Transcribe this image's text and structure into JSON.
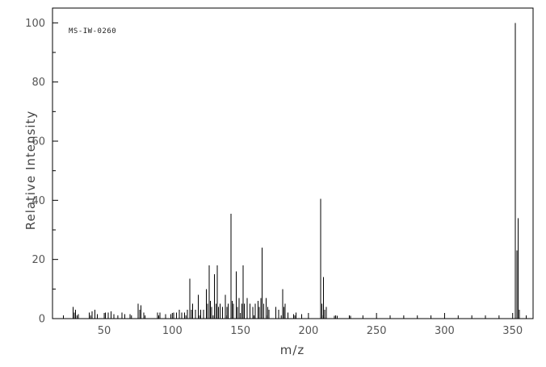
{
  "chart_data": {
    "type": "bar",
    "subtype": "mass-spectrum",
    "title": "",
    "annotation_label": "MS-IW-0260",
    "xlabel": "m/z",
    "ylabel": "Relative Intensity",
    "xlim": [
      12,
      365
    ],
    "ylim": [
      0,
      105
    ],
    "x_major_ticks": [
      50,
      100,
      150,
      200,
      250,
      300,
      350
    ],
    "x_minor_tick_step": 10,
    "y_major_ticks": [
      0,
      20,
      40,
      60,
      80,
      100
    ],
    "y_minor_tick_step": 10,
    "grid": false,
    "legend": "none",
    "peak_color": "#000000",
    "frame_color": "#000000",
    "tick_label_color": "#555555",
    "peaks": [
      [
        27,
        4
      ],
      [
        28,
        2
      ],
      [
        29,
        3
      ],
      [
        31,
        1.5
      ],
      [
        39,
        2
      ],
      [
        41,
        2.5
      ],
      [
        43,
        3
      ],
      [
        45,
        1.5
      ],
      [
        51,
        2
      ],
      [
        53,
        2
      ],
      [
        55,
        2.5
      ],
      [
        57,
        1.5
      ],
      [
        63,
        2
      ],
      [
        65,
        1.5
      ],
      [
        69,
        1.5
      ],
      [
        75,
        5
      ],
      [
        76,
        3
      ],
      [
        77,
        4.5
      ],
      [
        79,
        2
      ],
      [
        89,
        2
      ],
      [
        91,
        2
      ],
      [
        95,
        1.5
      ],
      [
        99,
        1.5
      ],
      [
        101,
        2
      ],
      [
        103,
        2
      ],
      [
        105,
        3
      ],
      [
        107,
        2
      ],
      [
        109,
        2
      ],
      [
        111,
        3
      ],
      [
        113,
        13.5
      ],
      [
        114,
        3
      ],
      [
        115,
        5
      ],
      [
        117,
        3
      ],
      [
        119,
        8
      ],
      [
        121,
        3
      ],
      [
        123,
        3
      ],
      [
        125,
        10
      ],
      [
        126,
        5
      ],
      [
        127,
        18
      ],
      [
        128,
        6
      ],
      [
        129,
        4
      ],
      [
        131,
        15
      ],
      [
        132,
        5
      ],
      [
        133,
        18
      ],
      [
        134,
        4
      ],
      [
        135,
        5
      ],
      [
        137,
        4
      ],
      [
        139,
        8
      ],
      [
        140,
        4
      ],
      [
        141,
        5
      ],
      [
        143,
        35.5
      ],
      [
        144,
        6
      ],
      [
        145,
        5
      ],
      [
        147,
        16
      ],
      [
        148,
        4
      ],
      [
        149,
        7
      ],
      [
        151,
        5
      ],
      [
        152,
        18
      ],
      [
        153,
        5
      ],
      [
        155,
        7
      ],
      [
        157,
        5
      ],
      [
        159,
        4
      ],
      [
        161,
        5
      ],
      [
        163,
        6
      ],
      [
        164,
        4
      ],
      [
        165,
        7
      ],
      [
        166,
        24
      ],
      [
        167,
        5
      ],
      [
        169,
        7
      ],
      [
        170,
        4
      ],
      [
        171,
        3
      ],
      [
        176,
        4
      ],
      [
        178,
        3
      ],
      [
        181,
        10
      ],
      [
        182,
        4
      ],
      [
        183,
        5
      ],
      [
        185,
        2
      ],
      [
        189,
        1.5
      ],
      [
        191,
        2
      ],
      [
        195,
        1.5
      ],
      [
        209,
        40.5
      ],
      [
        210,
        5
      ],
      [
        211,
        14
      ],
      [
        212,
        3
      ],
      [
        213,
        4
      ],
      [
        219,
        1
      ],
      [
        221,
        1
      ],
      [
        231,
        1
      ],
      [
        352,
        100
      ],
      [
        353,
        23
      ],
      [
        354,
        34
      ],
      [
        355,
        3
      ]
    ]
  }
}
